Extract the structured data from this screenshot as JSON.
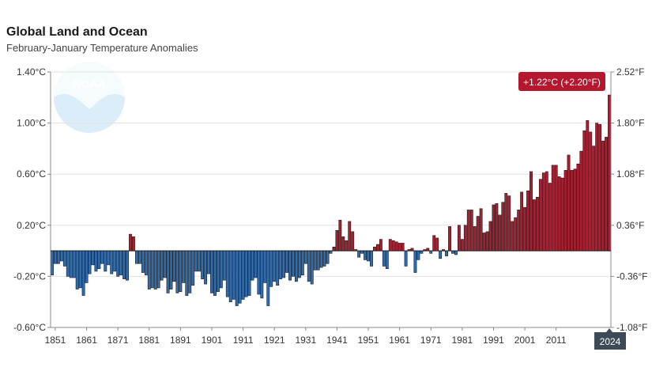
{
  "title": "Global Land and Ocean",
  "subtitle": "February-January Temperature Anomalies",
  "logo": {
    "text": "NOAA",
    "color": "#c9e3f3"
  },
  "colors": {
    "positive": "#b01c2e",
    "negative": "#2f6db3",
    "grid": "#e2e2e2",
    "axis": "#888888",
    "callout_bg": "#b5172f",
    "year_badge_bg": "#3d4a58"
  },
  "callout": "+1.22°C (+2.20°F)",
  "current_year": "2024",
  "chart_data": {
    "type": "bar",
    "title": "Global Land and Ocean",
    "subtitle": "February-January Temperature Anomalies",
    "xlabel": "",
    "ylabel": "",
    "ylim": [
      -0.6,
      1.4
    ],
    "y_ticks": [
      {
        "value": -0.6,
        "label": "-0.60°C"
      },
      {
        "value": -0.2,
        "label": "-0.20°C"
      },
      {
        "value": 0.2,
        "label": "0.20°C"
      },
      {
        "value": 0.6,
        "label": "0.60°C"
      },
      {
        "value": 1.0,
        "label": "1.00°C"
      },
      {
        "value": 1.4,
        "label": "1.40°C"
      }
    ],
    "y2_ticks": [
      {
        "value": -0.6,
        "label": "-1.08°F"
      },
      {
        "value": -0.2,
        "label": "-0.36°F"
      },
      {
        "value": 0.2,
        "label": "0.36°F"
      },
      {
        "value": 0.6,
        "label": "1.08°F"
      },
      {
        "value": 1.0,
        "label": "1.80°F"
      },
      {
        "value": 1.4,
        "label": "2.52°F"
      }
    ],
    "x_ticks": [
      "1851",
      "1861",
      "1871",
      "1881",
      "1891",
      "1901",
      "1911",
      "1921",
      "1931",
      "1941",
      "1951",
      "1961",
      "1971",
      "1981",
      "1991",
      "2001",
      "2011"
    ],
    "start_year": 1850,
    "grid": true,
    "values": [
      -0.19,
      -0.1,
      -0.1,
      -0.08,
      -0.12,
      -0.2,
      -0.21,
      -0.21,
      -0.3,
      -0.29,
      -0.35,
      -0.25,
      -0.18,
      -0.11,
      -0.16,
      -0.14,
      -0.1,
      -0.16,
      -0.11,
      -0.18,
      -0.16,
      -0.2,
      -0.19,
      -0.22,
      -0.23,
      0.13,
      0.11,
      -0.1,
      -0.1,
      -0.17,
      -0.19,
      -0.3,
      -0.29,
      -0.3,
      -0.29,
      -0.23,
      -0.21,
      -0.33,
      -0.3,
      -0.24,
      -0.33,
      -0.32,
      -0.25,
      -0.35,
      -0.33,
      -0.27,
      -0.16,
      -0.16,
      -0.22,
      -0.26,
      -0.18,
      -0.33,
      -0.35,
      -0.32,
      -0.29,
      -0.23,
      -0.36,
      -0.4,
      -0.38,
      -0.43,
      -0.41,
      -0.38,
      -0.36,
      -0.35,
      -0.23,
      -0.21,
      -0.34,
      -0.37,
      -0.25,
      -0.43,
      -0.28,
      -0.24,
      -0.27,
      -0.22,
      -0.21,
      -0.17,
      -0.23,
      -0.2,
      -0.24,
      -0.21,
      -0.19,
      -0.1,
      -0.24,
      -0.26,
      -0.15,
      -0.15,
      -0.13,
      -0.12,
      -0.1,
      -0.02,
      0.03,
      0.16,
      0.24,
      0.11,
      0.08,
      0.23,
      0.15,
      0.01,
      -0.05,
      -0.02,
      -0.07,
      -0.08,
      -0.12,
      0.03,
      0.05,
      0.09,
      -0.12,
      -0.14,
      0.09,
      0.08,
      0.07,
      0.06,
      0.06,
      -0.12,
      0.01,
      0.02,
      -0.17,
      -0.07,
      -0.02,
      0.01,
      0.02,
      -0.02,
      0.12,
      0.1,
      -0.06,
      0.01,
      -0.04,
      0.19,
      -0.02,
      -0.03,
      0.2,
      0.09,
      0.2,
      0.32,
      0.32,
      0.19,
      0.27,
      0.33,
      0.14,
      0.15,
      0.23,
      0.36,
      0.37,
      0.28,
      0.38,
      0.45,
      0.43,
      0.23,
      0.26,
      0.32,
      0.46,
      0.34,
      0.47,
      0.62,
      0.4,
      0.42,
      0.56,
      0.61,
      0.62,
      0.53,
      0.67,
      0.67,
      0.58,
      0.57,
      0.63,
      0.75,
      0.63,
      0.64,
      0.68,
      0.78,
      0.94,
      1.02,
      0.93,
      0.82,
      1.0,
      0.99,
      0.86,
      0.89,
      1.22
    ]
  }
}
